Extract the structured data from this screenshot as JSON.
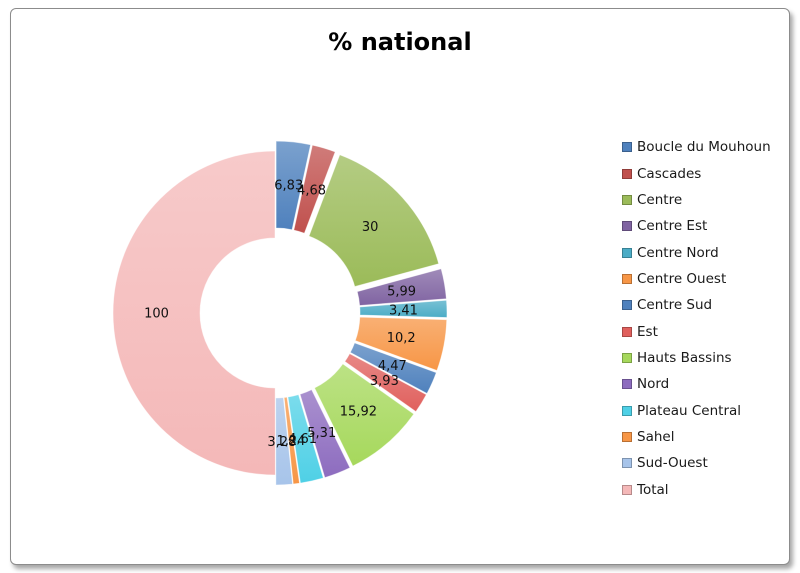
{
  "chart_data": {
    "type": "donut",
    "title": "% national",
    "categories": [
      "Boucle du Mouhoun",
      "Cascades",
      "Centre",
      "Centre Est",
      "Centre Nord",
      "Centre Ouest",
      "Centre Sud",
      "Est",
      "Hauts Bassins",
      "Nord",
      "Plateau Central",
      "Sahel",
      "Sud-Ouest",
      "Total"
    ],
    "values": [
      6.83,
      4.68,
      30,
      5.99,
      3.41,
      10.2,
      4.47,
      3.93,
      15.92,
      5.31,
      4.61,
      1.24,
      3.28,
      100
    ],
    "value_labels": [
      "6,83",
      "4,68",
      "30",
      "5,99",
      "3,41",
      "10,2",
      "4,47",
      "3,93",
      "15,92",
      "5,31",
      "4,61",
      "1,24",
      "3,28",
      "100"
    ],
    "colors": [
      "#4f81bd",
      "#c0504d",
      "#9bbb59",
      "#8064a2",
      "#4bacc6",
      "#f79646",
      "#4f81bd",
      "#e0605d",
      "#a6d85c",
      "#8d6cbf",
      "#4fd0e6",
      "#f79646",
      "#a7c4ea",
      "#f4b8b8"
    ],
    "legend_position": "right"
  }
}
